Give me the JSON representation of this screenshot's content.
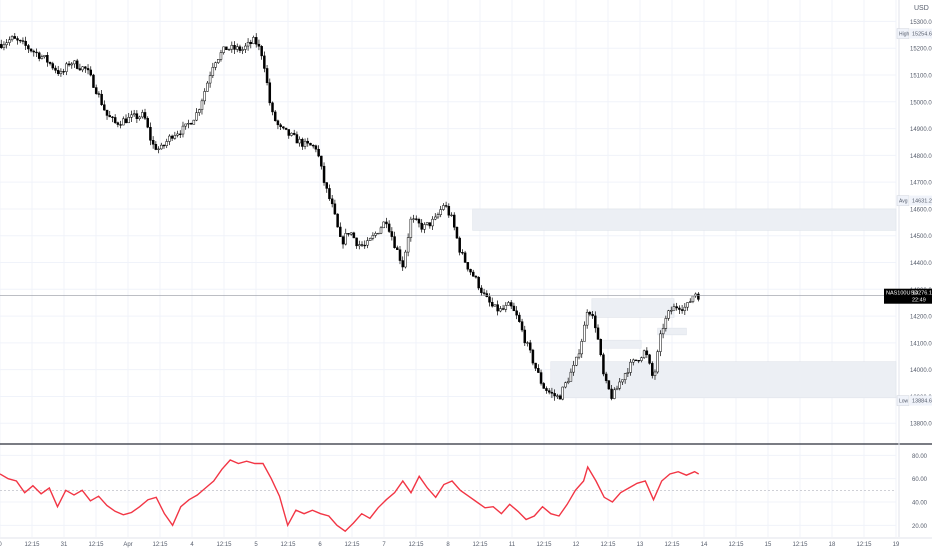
{
  "app": {
    "currency_label": "USD",
    "symbol_label": "NAS100USD",
    "countdown": "22:49"
  },
  "price_axis": {
    "ticks": [
      "15300.0",
      "15200.0",
      "15100.0",
      "15000.0",
      "14900.0",
      "14800.0",
      "14700.0",
      "14600.0",
      "14500.0",
      "14400.0",
      "14300.0",
      "14200.0",
      "14100.0",
      "14000.0",
      "13900.0",
      "13800.0"
    ],
    "labels": [
      {
        "name": "high-label",
        "tag": "High",
        "value": "15254.6",
        "price": 15254.6
      },
      {
        "name": "avg-label",
        "tag": "Avg",
        "value": "14631.2",
        "price": 14631.2
      },
      {
        "name": "last-price-label",
        "tag": "NAS100USD",
        "value": "14276.1",
        "price": 14276.1
      },
      {
        "name": "low-label",
        "tag": "Low",
        "value": "13884.6",
        "price": 13884.6
      }
    ]
  },
  "indicator_axis": {
    "ticks": [
      "80.00",
      "60.00",
      "40.00",
      "20.00"
    ]
  },
  "time_axis": {
    "labels": [
      "0",
      "12:15",
      "31",
      "12:15",
      "Apr",
      "12:15",
      "4",
      "12:15",
      "5",
      "12:15",
      "6",
      "12:15",
      "7",
      "12:15",
      "8",
      "12:15",
      "11",
      "12:15",
      "12",
      "12:15",
      "13",
      "12:15",
      "14",
      "12:15",
      "15",
      "12:15",
      "18",
      "12:15",
      "19"
    ]
  },
  "colors": {
    "candle": "#000000",
    "grid": "#f0f3fa",
    "zone": "#eceff4",
    "indicator_line": "#f23645",
    "axis_text": "#555c6b",
    "divider": "#2a2e39"
  },
  "chart_data": [
    {
      "type": "candlestick",
      "name": "",
      "yrange": [
        13730,
        15380
      ],
      "price_path": [
        {
          "t": 0,
          "p": 15215
        },
        {
          "t": 1.5,
          "p": 15235
        },
        {
          "t": 3,
          "p": 15210
        },
        {
          "t": 4.5,
          "p": 15180
        },
        {
          "t": 5.5,
          "p": 15160
        },
        {
          "t": 7.5,
          "p": 15100
        },
        {
          "t": 8.5,
          "p": 15150
        },
        {
          "t": 10.5,
          "p": 15120
        },
        {
          "t": 11.5,
          "p": 15060
        },
        {
          "t": 13,
          "p": 14950
        },
        {
          "t": 14,
          "p": 14920
        },
        {
          "t": 16,
          "p": 14940
        },
        {
          "t": 17.5,
          "p": 14950
        },
        {
          "t": 18.5,
          "p": 14840
        },
        {
          "t": 19.5,
          "p": 14820
        },
        {
          "t": 21,
          "p": 14880
        },
        {
          "t": 22.5,
          "p": 14900
        },
        {
          "t": 24,
          "p": 14960
        },
        {
          "t": 25,
          "p": 15050
        },
        {
          "t": 26,
          "p": 15150
        },
        {
          "t": 27.5,
          "p": 15200
        },
        {
          "t": 29.5,
          "p": 15195
        },
        {
          "t": 31,
          "p": 15230
        },
        {
          "t": 32,
          "p": 15170
        },
        {
          "t": 33,
          "p": 14960
        },
        {
          "t": 34,
          "p": 14900
        },
        {
          "t": 35.5,
          "p": 14870
        },
        {
          "t": 37,
          "p": 14840
        },
        {
          "t": 38.5,
          "p": 14830
        },
        {
          "t": 39.5,
          "p": 14690
        },
        {
          "t": 40.5,
          "p": 14600
        },
        {
          "t": 41.5,
          "p": 14470
        },
        {
          "t": 42.5,
          "p": 14520
        },
        {
          "t": 43.5,
          "p": 14470
        },
        {
          "t": 44.5,
          "p": 14460
        },
        {
          "t": 46,
          "p": 14520
        },
        {
          "t": 47,
          "p": 14560
        },
        {
          "t": 48,
          "p": 14470
        },
        {
          "t": 49,
          "p": 14390
        },
        {
          "t": 50,
          "p": 14560
        },
        {
          "t": 51.5,
          "p": 14530
        },
        {
          "t": 53,
          "p": 14560
        },
        {
          "t": 54,
          "p": 14620
        },
        {
          "t": 55,
          "p": 14560
        },
        {
          "t": 56,
          "p": 14440
        },
        {
          "t": 57,
          "p": 14380
        },
        {
          "t": 58,
          "p": 14330
        },
        {
          "t": 59,
          "p": 14270
        },
        {
          "t": 60,
          "p": 14230
        },
        {
          "t": 61,
          "p": 14220
        },
        {
          "t": 62,
          "p": 14240
        },
        {
          "t": 63,
          "p": 14190
        },
        {
          "t": 64,
          "p": 14100
        },
        {
          "t": 65,
          "p": 14020
        },
        {
          "t": 66,
          "p": 13940
        },
        {
          "t": 67,
          "p": 13910
        },
        {
          "t": 68,
          "p": 13895
        },
        {
          "t": 69,
          "p": 13960
        },
        {
          "t": 70,
          "p": 14020
        },
        {
          "t": 71,
          "p": 14140
        },
        {
          "t": 71.5,
          "p": 14240
        },
        {
          "t": 72.5,
          "p": 14160
        },
        {
          "t": 73.5,
          "p": 13960
        },
        {
          "t": 74.5,
          "p": 13895
        },
        {
          "t": 75.5,
          "p": 13960
        },
        {
          "t": 76.5,
          "p": 14010
        },
        {
          "t": 77.5,
          "p": 14040
        },
        {
          "t": 78.5,
          "p": 14070
        },
        {
          "t": 79.5,
          "p": 13960
        },
        {
          "t": 80.5,
          "p": 14150
        },
        {
          "t": 81.5,
          "p": 14220
        },
        {
          "t": 82.5,
          "p": 14240
        },
        {
          "t": 83.5,
          "p": 14230
        },
        {
          "t": 84.5,
          "p": 14290
        },
        {
          "t": 85,
          "p": 14276
        }
      ],
      "zones": [
        {
          "x_from": 57.5,
          "x_to": 109,
          "p_top": 14600,
          "p_bottom": 14520
        },
        {
          "x_from": 72,
          "x_to": 82,
          "p_top": 14265,
          "p_bottom": 14195
        },
        {
          "x_from": 80,
          "x_to": 83.5,
          "p_top": 14155,
          "p_bottom": 14130
        },
        {
          "x_from": 73,
          "x_to": 78,
          "p_top": 14110,
          "p_bottom": 14080
        },
        {
          "x_from": 67,
          "x_to": 109,
          "p_top": 14030,
          "p_bottom": 13895
        }
      ]
    },
    {
      "type": "line",
      "name": "",
      "yrange": [
        10,
        88
      ],
      "dashed_level": 50,
      "points": [
        {
          "t": 0,
          "v": 64
        },
        {
          "t": 1,
          "v": 60
        },
        {
          "t": 2,
          "v": 58
        },
        {
          "t": 3,
          "v": 48
        },
        {
          "t": 4,
          "v": 54
        },
        {
          "t": 5,
          "v": 47
        },
        {
          "t": 6,
          "v": 52
        },
        {
          "t": 7,
          "v": 36
        },
        {
          "t": 8,
          "v": 50
        },
        {
          "t": 9,
          "v": 46
        },
        {
          "t": 10,
          "v": 50
        },
        {
          "t": 11,
          "v": 41
        },
        {
          "t": 12,
          "v": 45
        },
        {
          "t": 13,
          "v": 37
        },
        {
          "t": 14,
          "v": 32
        },
        {
          "t": 15,
          "v": 29
        },
        {
          "t": 16,
          "v": 31
        },
        {
          "t": 17,
          "v": 36
        },
        {
          "t": 18,
          "v": 42
        },
        {
          "t": 19,
          "v": 44
        },
        {
          "t": 20,
          "v": 30
        },
        {
          "t": 21,
          "v": 20
        },
        {
          "t": 22,
          "v": 36
        },
        {
          "t": 23,
          "v": 42
        },
        {
          "t": 24,
          "v": 46
        },
        {
          "t": 25,
          "v": 52
        },
        {
          "t": 26,
          "v": 58
        },
        {
          "t": 27,
          "v": 68
        },
        {
          "t": 28,
          "v": 76
        },
        {
          "t": 29,
          "v": 73
        },
        {
          "t": 30,
          "v": 75
        },
        {
          "t": 31,
          "v": 73
        },
        {
          "t": 32,
          "v": 73
        },
        {
          "t": 33,
          "v": 60
        },
        {
          "t": 34,
          "v": 45
        },
        {
          "t": 35,
          "v": 20
        },
        {
          "t": 36,
          "v": 33
        },
        {
          "t": 37,
          "v": 30
        },
        {
          "t": 38,
          "v": 33
        },
        {
          "t": 39,
          "v": 30
        },
        {
          "t": 40,
          "v": 28
        },
        {
          "t": 41,
          "v": 20
        },
        {
          "t": 42,
          "v": 15
        },
        {
          "t": 43,
          "v": 22
        },
        {
          "t": 44,
          "v": 30
        },
        {
          "t": 45,
          "v": 26
        },
        {
          "t": 46,
          "v": 35
        },
        {
          "t": 47,
          "v": 42
        },
        {
          "t": 48,
          "v": 48
        },
        {
          "t": 49,
          "v": 58
        },
        {
          "t": 50,
          "v": 48
        },
        {
          "t": 51,
          "v": 62
        },
        {
          "t": 52,
          "v": 52
        },
        {
          "t": 53,
          "v": 44
        },
        {
          "t": 54,
          "v": 55
        },
        {
          "t": 55,
          "v": 58
        },
        {
          "t": 56,
          "v": 50
        },
        {
          "t": 57,
          "v": 45
        },
        {
          "t": 58,
          "v": 40
        },
        {
          "t": 59,
          "v": 35
        },
        {
          "t": 60,
          "v": 36
        },
        {
          "t": 61,
          "v": 30
        },
        {
          "t": 62,
          "v": 38
        },
        {
          "t": 63,
          "v": 32
        },
        {
          "t": 64,
          "v": 25
        },
        {
          "t": 65,
          "v": 28
        },
        {
          "t": 66,
          "v": 36
        },
        {
          "t": 67,
          "v": 30
        },
        {
          "t": 68,
          "v": 28
        },
        {
          "t": 69,
          "v": 38
        },
        {
          "t": 70,
          "v": 50
        },
        {
          "t": 71,
          "v": 58
        },
        {
          "t": 71.5,
          "v": 70
        },
        {
          "t": 72.5,
          "v": 58
        },
        {
          "t": 73.5,
          "v": 44
        },
        {
          "t": 74.5,
          "v": 40
        },
        {
          "t": 75.5,
          "v": 48
        },
        {
          "t": 76.5,
          "v": 52
        },
        {
          "t": 77.5,
          "v": 56
        },
        {
          "t": 78.5,
          "v": 58
        },
        {
          "t": 79.5,
          "v": 42
        },
        {
          "t": 80.5,
          "v": 58
        },
        {
          "t": 81.5,
          "v": 64
        },
        {
          "t": 82.5,
          "v": 66
        },
        {
          "t": 83.5,
          "v": 63
        },
        {
          "t": 84.5,
          "v": 66
        },
        {
          "t": 85,
          "v": 64
        }
      ]
    }
  ]
}
